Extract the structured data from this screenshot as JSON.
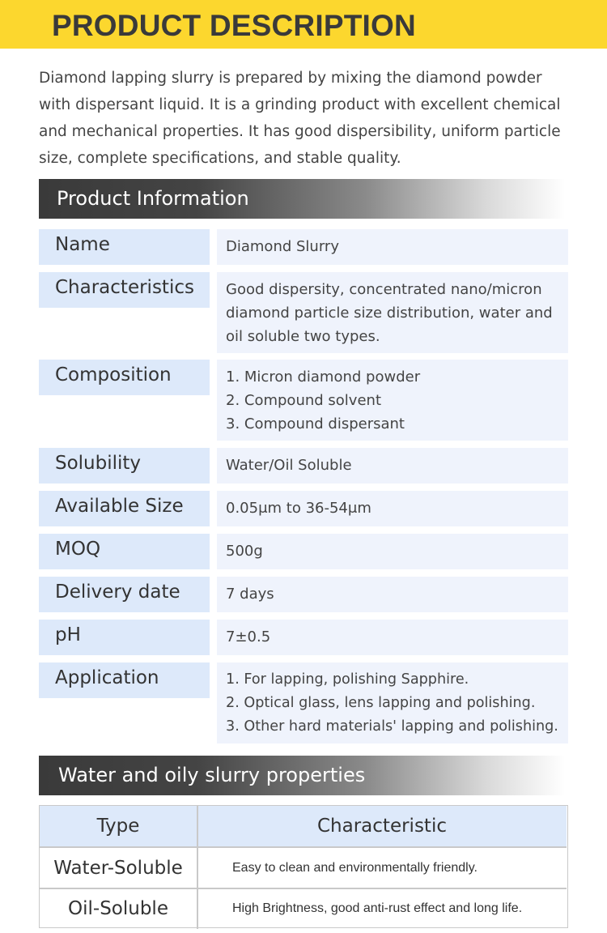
{
  "header": {
    "title": "PRODUCT DESCRIPTION"
  },
  "intro": {
    "lines": [
      "Diamond lapping slurry is prepared by mixing the diamond powder",
      "with dispersant liquid. It is a grinding product with excellent chemical",
      "and mechanical properties. It has good dispersibility, uniform particle",
      "size, complete specifications, and stable quality."
    ]
  },
  "product_info": {
    "title": "Product Information",
    "rows": [
      {
        "label": "Name",
        "value": [
          "Diamond Slurry"
        ]
      },
      {
        "label": "Characteristics",
        "value": [
          "Good dispersity, concentrated nano/micron",
          "diamond particle size distribution, water and",
          "oil soluble two types."
        ]
      },
      {
        "label": "Composition",
        "value": [
          "1. Micron diamond powder",
          "2. Compound solvent",
          "3. Compound dispersant"
        ]
      },
      {
        "label": "Solubility",
        "value": [
          "Water/Oil Soluble"
        ]
      },
      {
        "label": "Available Size",
        "value": [
          "0.05μm to 36-54μm"
        ]
      },
      {
        "label": "MOQ",
        "value": [
          "500g"
        ]
      },
      {
        "label": "Delivery date",
        "value": [
          "7 days"
        ]
      },
      {
        "label": "pH",
        "value": [
          "7±0.5"
        ]
      },
      {
        "label": "Application",
        "value": [
          "1. For lapping, polishing Sapphire.",
          "2. Optical glass, lens lapping and polishing.",
          "3. Other hard materials' lapping and polishing."
        ]
      }
    ]
  },
  "properties": {
    "title": "Water and oily slurry properties",
    "headers": {
      "type": "Type",
      "characteristic": "Characteristic"
    },
    "rows": [
      {
        "type": "Water-Soluble",
        "characteristic": "Easy to clean and environmentally friendly."
      },
      {
        "type": "Oil-Soluble",
        "characteristic": "High Brightness, good anti-rust effect and long life."
      }
    ]
  },
  "colors": {
    "banner": "#fcd72e",
    "label_bg": "#dde9fa",
    "value_bg": "#eff3fc",
    "section_bar_dark": "#3a3a3a"
  }
}
